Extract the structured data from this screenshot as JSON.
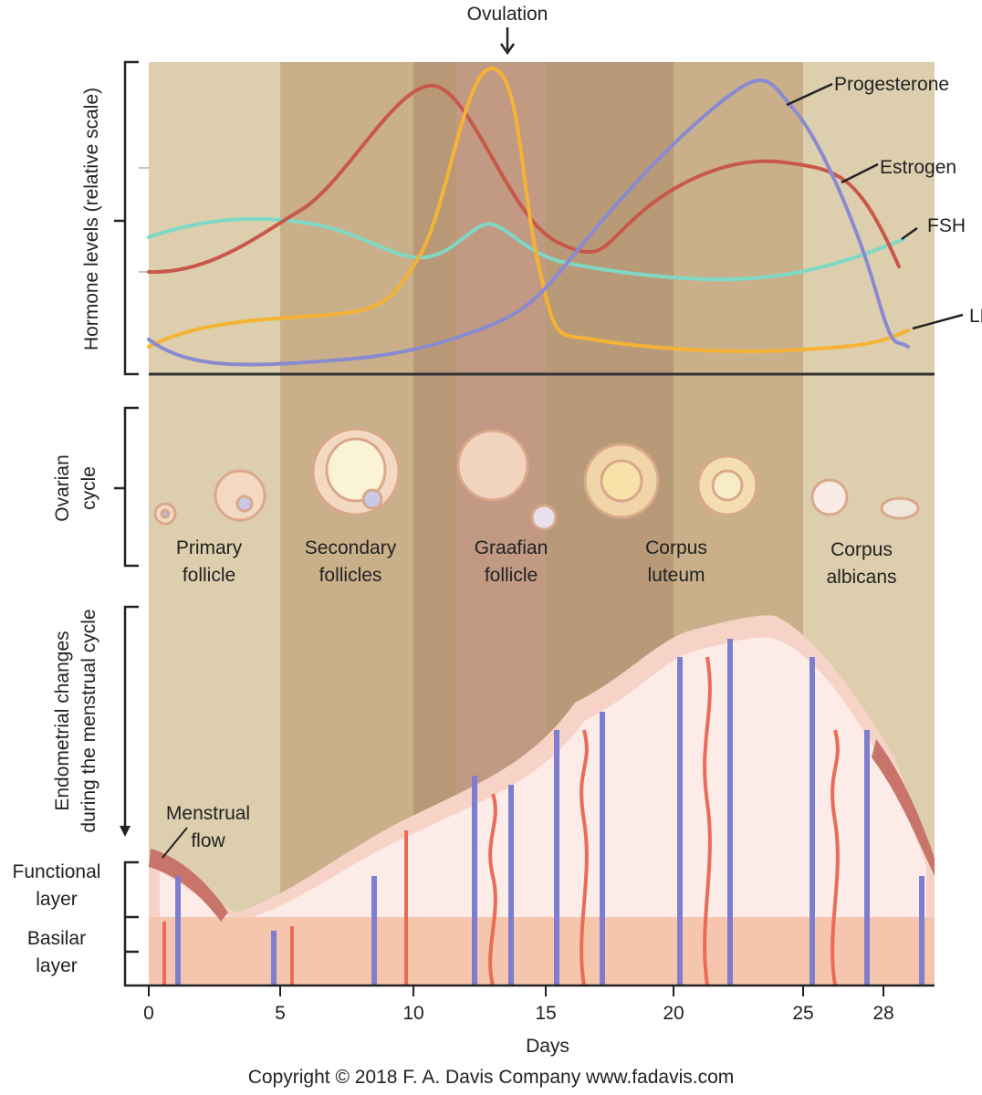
{
  "title_top": "Ovulation",
  "hormone_panel": {
    "y_label": "Hormone levels (relative scale)",
    "curves": [
      {
        "label": "Progesterone"
      },
      {
        "label": "Estrogen"
      },
      {
        "label": "FSH"
      },
      {
        "label": "LH"
      }
    ]
  },
  "ovarian_panel": {
    "y_label": [
      "Ovarian",
      "cycle"
    ],
    "stages": [
      [
        "Primary",
        "follicle"
      ],
      [
        "Secondary",
        "follicles"
      ],
      [
        "Graafian",
        "follicle"
      ],
      [
        "Corpus",
        "luteum"
      ],
      [
        "Corpus",
        "albicans"
      ]
    ]
  },
  "endometrium_panel": {
    "y_label": [
      "Endometrial changes",
      "during the menstrual cycle"
    ],
    "annotation": [
      "Menstrual",
      "flow"
    ],
    "layers": [
      [
        "Functional",
        "layer"
      ],
      [
        "Basilar",
        "layer"
      ]
    ]
  },
  "x_axis": {
    "label": "Days",
    "ticks": [
      "0",
      "5",
      "10",
      "15",
      "20",
      "25",
      "28"
    ]
  },
  "copyright": "Copyright © 2018 F. A. Davis Company www.fadavis.com"
}
